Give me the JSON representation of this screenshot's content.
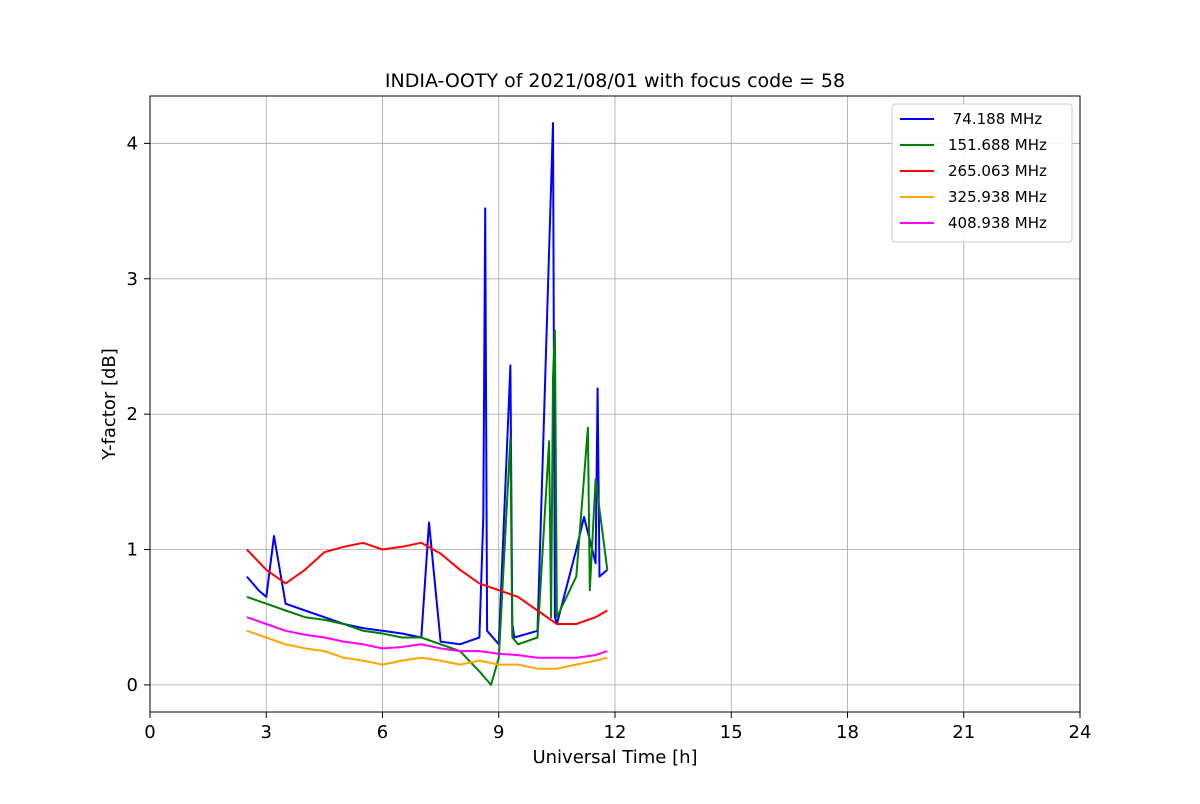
{
  "chart_data": {
    "type": "line",
    "title": "INDIA-OOTY of 2021/08/01 with focus code = 58",
    "xlabel": "Universal Time [h]",
    "ylabel": "Y-factor [dB]",
    "xlim": [
      0,
      24
    ],
    "ylim": [
      -0.2,
      4.35
    ],
    "xticks": [
      0,
      3,
      6,
      9,
      12,
      15,
      18,
      21,
      24
    ],
    "xtick_labels": [
      "0",
      "3",
      "6",
      "9",
      "12",
      "15",
      "18",
      "21",
      "24"
    ],
    "yticks": [
      0,
      1,
      2,
      3,
      4
    ],
    "ytick_labels": [
      "0",
      "1",
      "2",
      "3",
      "4"
    ],
    "grid": true,
    "legend_position": "top-right",
    "series": [
      {
        "name": " 74.188 MHz",
        "color": "#0000ff",
        "x": [
          2.5,
          2.8,
          3.0,
          3.2,
          3.5,
          4.0,
          4.5,
          5.0,
          5.5,
          6.0,
          6.5,
          7.0,
          7.2,
          7.5,
          8.0,
          8.5,
          8.6,
          8.65,
          8.7,
          9.0,
          9.3,
          9.35,
          9.4,
          10.0,
          10.4,
          10.45,
          10.5,
          11.0,
          11.2,
          11.5,
          11.55,
          11.6,
          11.8
        ],
        "y": [
          0.8,
          0.7,
          0.65,
          1.1,
          0.6,
          0.55,
          0.5,
          0.45,
          0.42,
          0.4,
          0.38,
          0.35,
          1.2,
          0.32,
          0.3,
          0.35,
          1.24,
          3.52,
          0.4,
          0.3,
          2.36,
          0.45,
          0.35,
          0.4,
          4.15,
          0.5,
          0.45,
          1.0,
          1.24,
          0.9,
          2.19,
          0.8,
          0.85
        ]
      },
      {
        "name": "151.688 MHz",
        "color": "#008000",
        "x": [
          2.5,
          3.0,
          3.5,
          4.0,
          4.5,
          5.0,
          5.5,
          6.0,
          6.5,
          7.0,
          7.5,
          8.0,
          8.5,
          8.8,
          9.0,
          9.3,
          9.35,
          9.5,
          10.0,
          10.3,
          10.35,
          10.4,
          10.45,
          10.5,
          11.0,
          11.3,
          11.35,
          11.5,
          11.8
        ],
        "y": [
          0.65,
          0.6,
          0.55,
          0.5,
          0.48,
          0.45,
          0.4,
          0.38,
          0.35,
          0.35,
          0.3,
          0.25,
          0.1,
          0.0,
          0.2,
          1.82,
          0.35,
          0.3,
          0.35,
          1.8,
          0.5,
          2.27,
          2.62,
          0.5,
          0.8,
          1.9,
          0.7,
          1.52,
          0.85
        ]
      },
      {
        "name": "265.063 MHz",
        "color": "#ff0000",
        "x": [
          2.5,
          3.0,
          3.5,
          4.0,
          4.5,
          5.0,
          5.5,
          6.0,
          6.5,
          7.0,
          7.5,
          8.0,
          8.5,
          9.0,
          9.5,
          10.0,
          10.5,
          11.0,
          11.5,
          11.8
        ],
        "y": [
          1.0,
          0.85,
          0.75,
          0.85,
          0.98,
          1.02,
          1.05,
          1.0,
          1.02,
          1.05,
          0.97,
          0.85,
          0.75,
          0.7,
          0.65,
          0.55,
          0.45,
          0.45,
          0.5,
          0.55
        ]
      },
      {
        "name": "325.938 MHz",
        "color": "#ffa500",
        "x": [
          2.5,
          3.0,
          3.5,
          4.0,
          4.5,
          5.0,
          5.5,
          6.0,
          6.5,
          7.0,
          7.5,
          8.0,
          8.5,
          9.0,
          9.5,
          10.0,
          10.5,
          11.0,
          11.5,
          11.8
        ],
        "y": [
          0.4,
          0.35,
          0.3,
          0.27,
          0.25,
          0.2,
          0.18,
          0.15,
          0.18,
          0.2,
          0.18,
          0.15,
          0.18,
          0.15,
          0.15,
          0.12,
          0.12,
          0.15,
          0.18,
          0.2
        ]
      },
      {
        "name": "408.938 MHz",
        "color": "#ff00ff",
        "x": [
          2.5,
          3.0,
          3.5,
          4.0,
          4.5,
          5.0,
          5.5,
          6.0,
          6.5,
          7.0,
          7.5,
          8.0,
          8.5,
          9.0,
          9.5,
          10.0,
          10.5,
          11.0,
          11.5,
          11.8
        ],
        "y": [
          0.5,
          0.45,
          0.4,
          0.37,
          0.35,
          0.32,
          0.3,
          0.27,
          0.28,
          0.3,
          0.27,
          0.25,
          0.25,
          0.23,
          0.22,
          0.2,
          0.2,
          0.2,
          0.22,
          0.25
        ]
      }
    ]
  }
}
